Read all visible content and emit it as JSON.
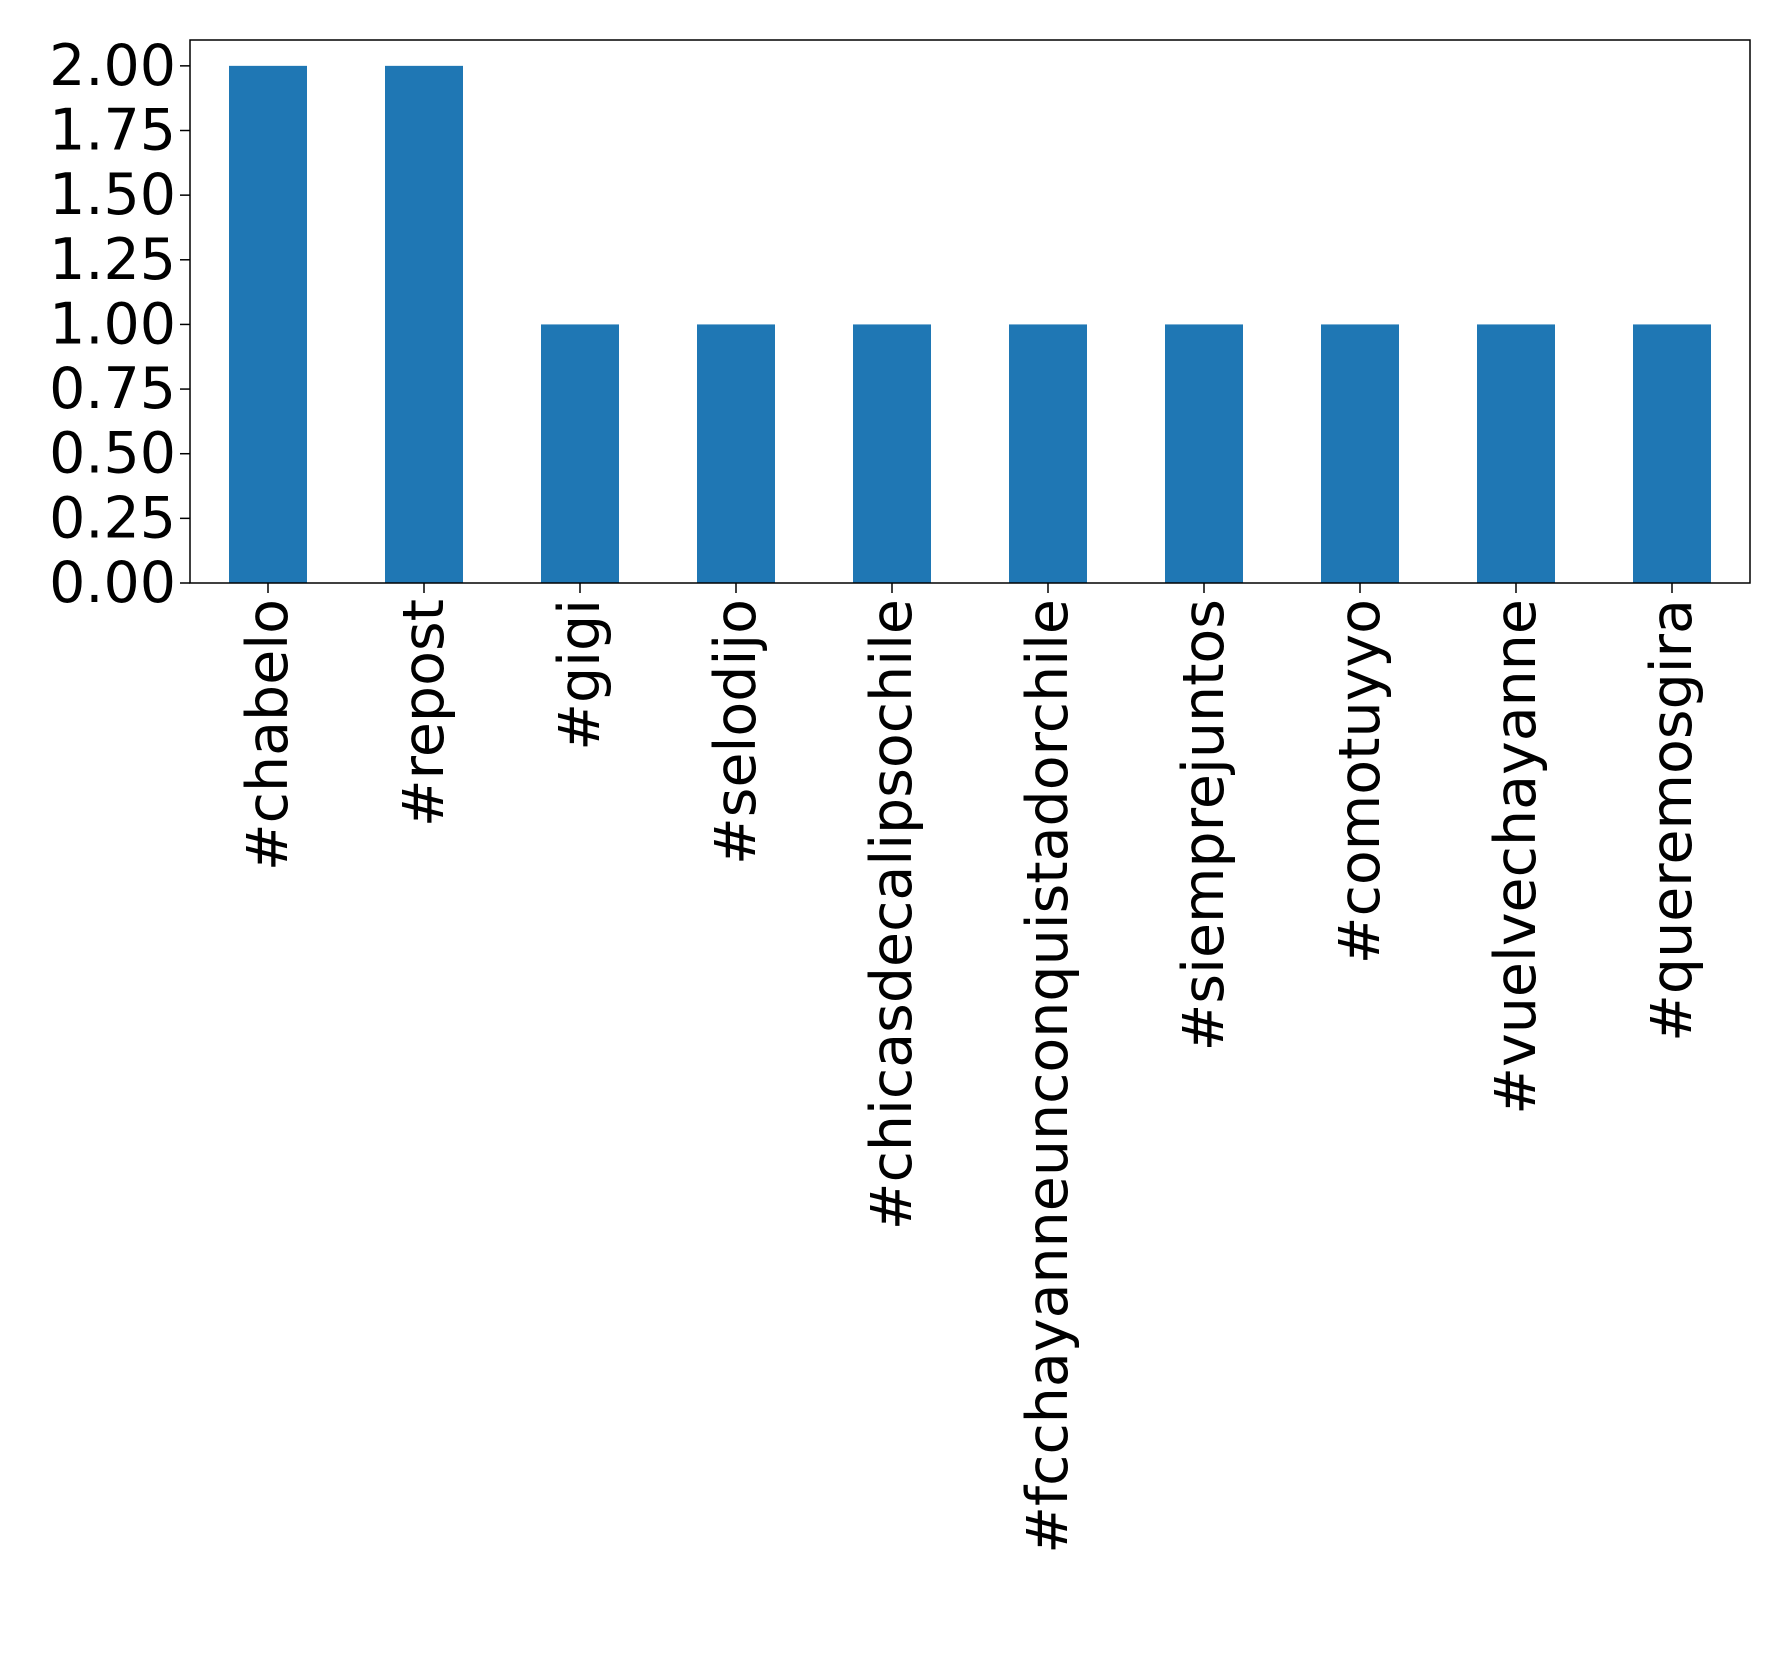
{
  "chart_data": {
    "type": "bar",
    "categories": [
      "#chabelo",
      "#repost",
      "#gigi",
      "#selodijo",
      "#chicasdecalipsochile",
      "#fcchayanneunconquistadorchile",
      "#siemprejuntos",
      "#comotuyyo",
      "#vuelvechayanne",
      "#queremosgira"
    ],
    "values": [
      2,
      2,
      1,
      1,
      1,
      1,
      1,
      1,
      1,
      1
    ],
    "ylim": [
      0,
      2.1
    ],
    "yticks": [
      "0.00",
      "0.25",
      "0.50",
      "0.75",
      "1.00",
      "1.25",
      "1.50",
      "1.75",
      "2.00"
    ],
    "title": "",
    "xlabel": "",
    "ylabel": "",
    "grid": false,
    "bar_color": "#1f77b4"
  }
}
